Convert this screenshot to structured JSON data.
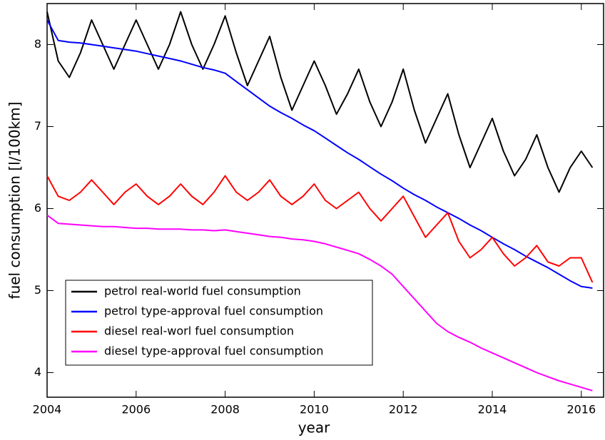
{
  "chart_data": {
    "type": "line",
    "x_label": "year",
    "y_label": "fuel consumption [l/100km]",
    "x": [
      2004,
      2004.25,
      2004.5,
      2004.75,
      2005,
      2005.25,
      2005.5,
      2005.75,
      2006,
      2006.25,
      2006.5,
      2006.75,
      2007,
      2007.25,
      2007.5,
      2007.75,
      2008,
      2008.25,
      2008.5,
      2008.75,
      2009,
      2009.25,
      2009.5,
      2009.75,
      2010,
      2010.25,
      2010.5,
      2010.75,
      2011,
      2011.25,
      2011.5,
      2011.75,
      2012,
      2012.25,
      2012.5,
      2012.75,
      2013,
      2013.25,
      2013.5,
      2013.75,
      2014,
      2014.25,
      2014.5,
      2014.75,
      2015,
      2015.25,
      2015.5,
      2015.75,
      2016,
      2016.25
    ],
    "series": [
      {
        "name": "petrol real-world fuel consumption",
        "color": "#000000",
        "values": [
          8.4,
          7.8,
          7.6,
          7.9,
          8.3,
          8.0,
          7.7,
          8.0,
          8.3,
          8.0,
          7.7,
          8.0,
          8.4,
          8.0,
          7.7,
          8.0,
          8.35,
          7.9,
          7.5,
          7.8,
          8.1,
          7.6,
          7.2,
          7.5,
          7.8,
          7.5,
          7.15,
          7.4,
          7.7,
          7.3,
          7.0,
          7.3,
          7.7,
          7.2,
          6.8,
          7.1,
          7.4,
          6.9,
          6.5,
          6.8,
          7.1,
          6.7,
          6.4,
          6.6,
          6.9,
          6.5,
          6.2,
          6.5,
          6.7,
          6.5
        ]
      },
      {
        "name": "petrol type-approval fuel consumption",
        "color": "#0000ff",
        "values": [
          8.3,
          8.05,
          8.03,
          8.02,
          8.0,
          7.98,
          7.96,
          7.94,
          7.92,
          7.89,
          7.86,
          7.83,
          7.8,
          7.76,
          7.72,
          7.69,
          7.65,
          7.55,
          7.45,
          7.35,
          7.25,
          7.17,
          7.1,
          7.02,
          6.95,
          6.86,
          6.77,
          6.68,
          6.6,
          6.51,
          6.42,
          6.34,
          6.25,
          6.17,
          6.1,
          6.02,
          5.95,
          5.88,
          5.8,
          5.73,
          5.65,
          5.57,
          5.5,
          5.42,
          5.35,
          5.28,
          5.2,
          5.12,
          5.05,
          5.03
        ]
      },
      {
        "name": "diesel real-worl fuel consumption",
        "color": "#ff0000",
        "values": [
          6.4,
          6.15,
          6.1,
          6.2,
          6.35,
          6.2,
          6.05,
          6.2,
          6.3,
          6.15,
          6.05,
          6.15,
          6.3,
          6.15,
          6.05,
          6.2,
          6.4,
          6.2,
          6.1,
          6.2,
          6.35,
          6.15,
          6.05,
          6.15,
          6.3,
          6.1,
          6.0,
          6.1,
          6.2,
          6.0,
          5.85,
          6.0,
          6.15,
          5.9,
          5.65,
          5.8,
          5.95,
          5.6,
          5.4,
          5.5,
          5.65,
          5.45,
          5.3,
          5.4,
          5.55,
          5.35,
          5.3,
          5.4,
          5.4,
          5.1
        ]
      },
      {
        "name": "diesel type-approval fuel consumption",
        "color": "#ff00ff",
        "values": [
          5.92,
          5.82,
          5.81,
          5.8,
          5.79,
          5.78,
          5.78,
          5.77,
          5.76,
          5.76,
          5.75,
          5.75,
          5.75,
          5.74,
          5.74,
          5.73,
          5.74,
          5.72,
          5.7,
          5.68,
          5.66,
          5.65,
          5.63,
          5.62,
          5.6,
          5.57,
          5.53,
          5.49,
          5.45,
          5.38,
          5.3,
          5.2,
          5.05,
          4.9,
          4.75,
          4.6,
          4.5,
          4.43,
          4.37,
          4.3,
          4.24,
          4.18,
          4.12,
          4.06,
          4.0,
          3.95,
          3.9,
          3.86,
          3.82,
          3.78
        ]
      }
    ],
    "xlim": [
      2004,
      2016.5
    ],
    "xticks": [
      2004,
      2006,
      2008,
      2010,
      2012,
      2014,
      2016
    ],
    "ylim": [
      3.7,
      8.5
    ],
    "yticks": [
      4,
      5,
      6,
      7,
      8
    ],
    "legend": "lower-left"
  }
}
